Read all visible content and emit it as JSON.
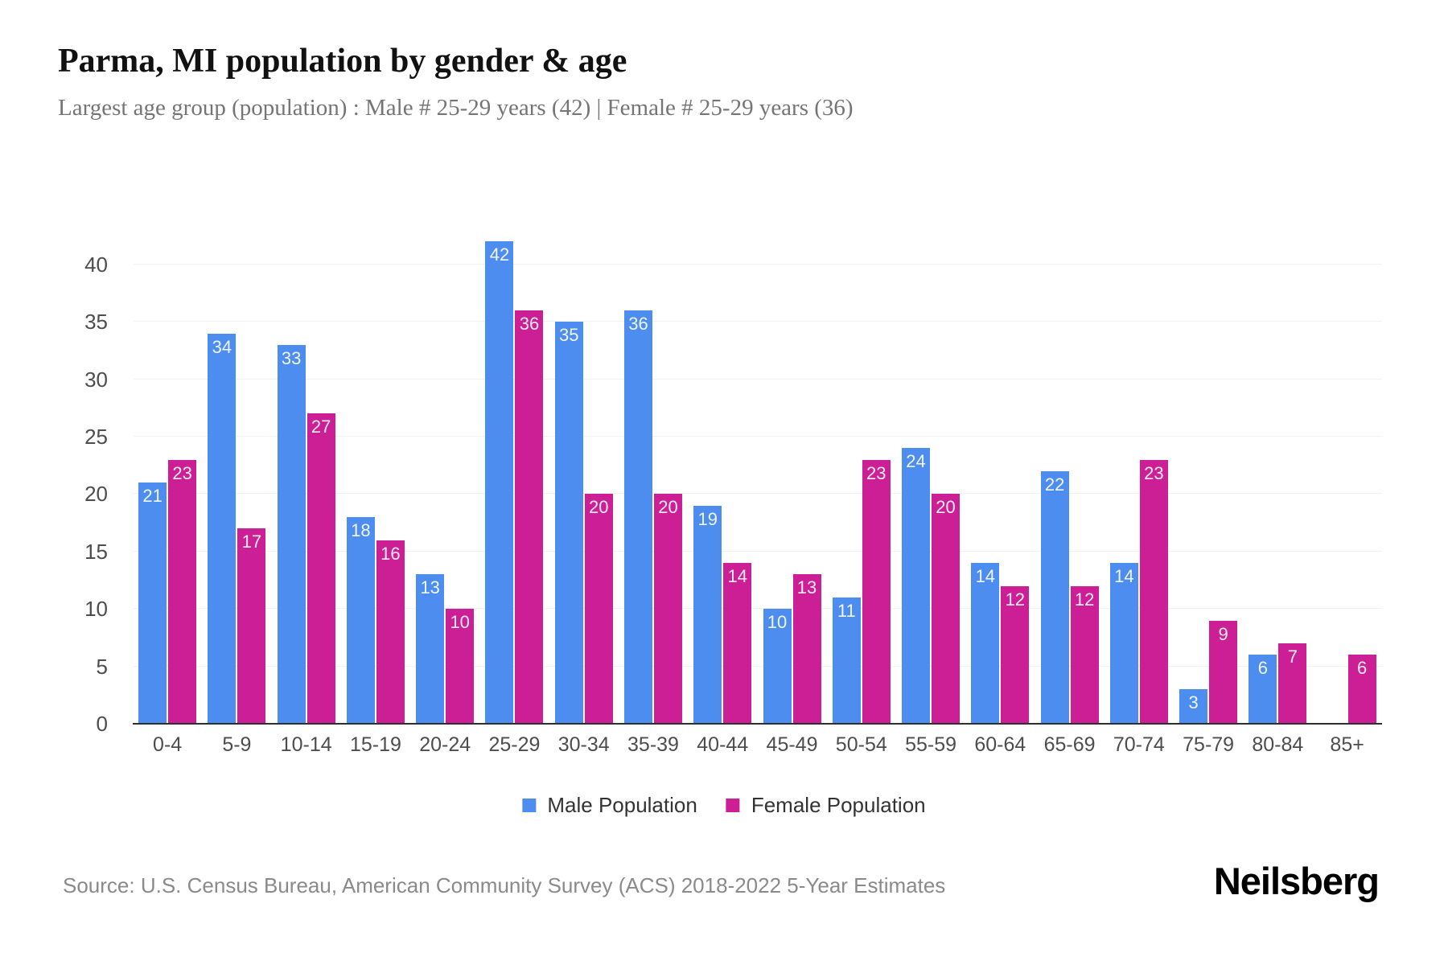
{
  "header": {
    "title": "Parma, MI population by gender & age",
    "subtitle": "Largest age group (population) : Male # 25-29 years (42) | Female # 25-29 years (36)"
  },
  "chart_data": {
    "type": "bar",
    "title": "Parma, MI population by gender & age",
    "xlabel": "",
    "ylabel": "",
    "categories": [
      "0-4",
      "5-9",
      "10-14",
      "15-19",
      "20-24",
      "25-29",
      "30-34",
      "35-39",
      "40-44",
      "45-49",
      "50-54",
      "55-59",
      "60-64",
      "65-69",
      "70-74",
      "75-79",
      "80-84",
      "85+"
    ],
    "series": [
      {
        "name": "Male Population",
        "color": "#4d8df0",
        "values": [
          21,
          34,
          33,
          18,
          13,
          42,
          35,
          36,
          19,
          10,
          11,
          24,
          14,
          22,
          14,
          3,
          6,
          0
        ]
      },
      {
        "name": "Female Population",
        "color": "#cc1f96",
        "values": [
          23,
          17,
          27,
          16,
          10,
          36,
          20,
          20,
          14,
          13,
          23,
          20,
          12,
          12,
          23,
          9,
          7,
          6
        ]
      }
    ],
    "ylim": [
      0,
      43
    ],
    "yticks": [
      0,
      5,
      10,
      15,
      20,
      25,
      30,
      35,
      40
    ],
    "grid": "horizontal-only",
    "gridline_color": "#f1f1f1",
    "bar_value_labels": "inside-top, white",
    "legend_position": "bottom-center"
  },
  "footer": {
    "source": "Source: U.S. Census Bureau, American Community Survey (ACS) 2018-2022 5-Year Estimates",
    "brand": "Neilsberg"
  }
}
